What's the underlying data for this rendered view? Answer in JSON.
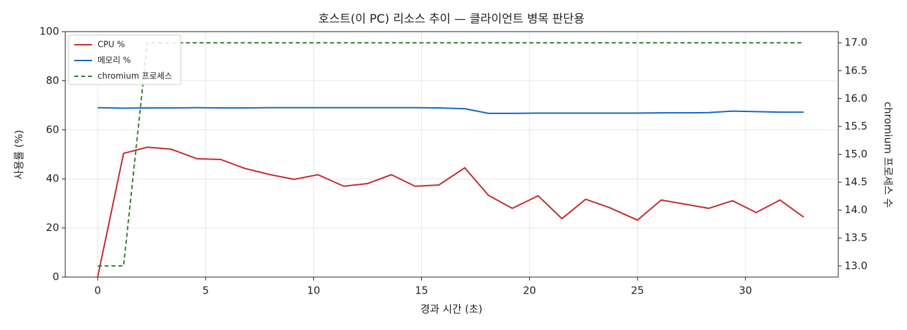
{
  "chart_data": {
    "type": "line",
    "title": "호스트(이 PC) 리소스 추이 — 클라이언트 병목 판단용",
    "x_label": "경과 시간 (초)",
    "y_label": "사용률 (%)",
    "y2_label": "chromium 프로세스 수",
    "x": [
      0,
      1.2,
      2.3,
      3.4,
      4.6,
      5.7,
      6.8,
      8.0,
      9.1,
      10.2,
      11.4,
      12.5,
      13.6,
      14.7,
      15.8,
      17.0,
      18.1,
      19.2,
      20.4,
      21.5,
      22.6,
      23.7,
      25.0,
      26.1,
      27.2,
      28.3,
      29.4,
      30.5,
      31.6,
      32.7
    ],
    "series": [
      {
        "name": "CPU %",
        "color": "#c62828",
        "dash": "solid",
        "values": [
          0,
          50.4,
          52.9,
          52.1,
          48.2,
          47.9,
          44.3,
          41.7,
          39.8,
          41.7,
          37.0,
          38.1,
          41.7,
          37.0,
          37.5,
          44.5,
          33.3,
          28.0,
          33.1,
          23.8,
          31.7,
          28.3,
          23.2,
          31.4,
          29.7,
          28.0,
          31.1,
          26.3,
          31.4,
          24.4
        ]
      },
      {
        "name": "메모리 %",
        "color": "#1565c0",
        "dash": "solid",
        "values": [
          69.0,
          68.8,
          68.9,
          68.9,
          69.0,
          68.9,
          68.9,
          69.0,
          69.0,
          69.0,
          69.0,
          69.0,
          69.0,
          69.0,
          68.9,
          68.6,
          66.7,
          66.7,
          66.8,
          66.8,
          66.8,
          66.8,
          66.8,
          66.9,
          66.9,
          67.0,
          67.6,
          67.4,
          67.2,
          67.2
        ]
      },
      {
        "name": "chromium 프로세스",
        "color": "#2e7d32",
        "dash": "dashed",
        "axis": "y2",
        "values": [
          13,
          13,
          17,
          17,
          17,
          17,
          17,
          17,
          17,
          17,
          17,
          17,
          17,
          17,
          17,
          17,
          17,
          17,
          17,
          17,
          17,
          17,
          17,
          17,
          17,
          17,
          17,
          17,
          17,
          17
        ]
      }
    ],
    "xlim": [
      -1.5,
      34.3
    ],
    "xticks": [
      0,
      5,
      10,
      15,
      20,
      25,
      30
    ],
    "ylim": [
      0,
      100
    ],
    "yticks": [
      0,
      20,
      40,
      60,
      80,
      100
    ],
    "y2lim": [
      12.8,
      17.2
    ],
    "y2ticks": [
      {
        "value": 13,
        "label": "13.0"
      },
      13.5,
      {
        "value": 14,
        "label": "14.0"
      },
      14.5,
      {
        "value": 15,
        "label": "15.0"
      },
      15.5,
      {
        "value": 16,
        "label": "16.0"
      },
      16.5,
      {
        "value": 17,
        "label": "17.0"
      }
    ],
    "grid": true,
    "legend": "upper-left"
  }
}
